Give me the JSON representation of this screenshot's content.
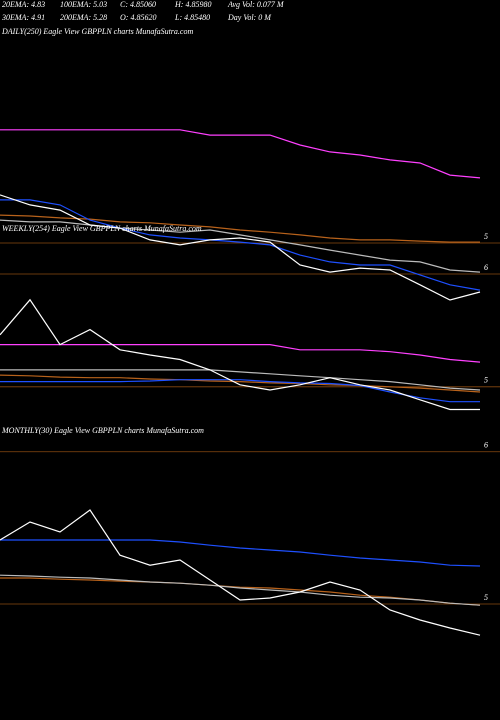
{
  "header": {
    "stats": [
      [
        "20EMA: 4.83",
        "100EMA: 5.03",
        "C: 4.85060",
        "H: 4.85980",
        "Avg Vol: 0.077 M"
      ],
      [
        "30EMA: 4.91",
        "200EMA: 5.28",
        "O: 4.85620",
        "L: 4.85480",
        "Day Vol: 0  M"
      ]
    ]
  },
  "chart_data": [
    {
      "type": "line",
      "title": "DAILY(250) Eagle  View  GBPPLN  charts MunafaSutra.com",
      "ylim": [
        7,
        1
      ],
      "yticks": [
        5,
        6
      ],
      "grid": true,
      "series": [
        {
          "color": "#ff40ff",
          "values": [
            1.35,
            1.35,
            1.35,
            1.35,
            1.35,
            1.35,
            1.35,
            1.52,
            1.52,
            1.52,
            1.84,
            2.06,
            2.16,
            2.32,
            2.42,
            2.81,
            2.9
          ]
        },
        {
          "color": "#b8621b",
          "values": [
            4.1,
            4.13,
            4.19,
            4.23,
            4.32,
            4.35,
            4.42,
            4.48,
            4.58,
            4.65,
            4.74,
            4.84,
            4.9,
            4.9,
            4.94,
            4.97,
            4.97
          ]
        },
        {
          "color": "#bbbbbb",
          "values": [
            4.26,
            4.32,
            4.32,
            4.42,
            4.52,
            4.58,
            4.65,
            4.58,
            4.74,
            4.9,
            5.06,
            5.23,
            5.39,
            5.55,
            5.61,
            5.87,
            5.94
          ]
        },
        {
          "color": "#1e50ff",
          "values": [
            3.61,
            3.61,
            3.77,
            4.26,
            4.52,
            4.74,
            4.84,
            4.9,
            4.97,
            5.06,
            5.39,
            5.61,
            5.71,
            5.71,
            6.03,
            6.35,
            6.52
          ]
        },
        {
          "color": "#ffffff",
          "values": [
            3.45,
            3.77,
            3.94,
            4.42,
            4.52,
            4.9,
            5.06,
            4.9,
            4.84,
            4.97,
            5.71,
            5.94,
            5.81,
            5.87,
            6.35,
            6.84,
            6.58
          ]
        }
      ]
    },
    {
      "type": "line",
      "title": "WEEKLY(254) Eagle  View  GBPPLN  charts MunafaSutra.com",
      "ylim": [
        6.05,
        2.74
      ],
      "yticks": [
        5,
        6
      ],
      "grid": true,
      "series": [
        {
          "color": "#ff40ff",
          "values": [
            4.35,
            4.35,
            4.35,
            4.35,
            4.35,
            4.35,
            4.35,
            4.35,
            4.35,
            4.35,
            4.43,
            4.43,
            4.43,
            4.46,
            4.51,
            4.58,
            4.62
          ]
        },
        {
          "color": "#b8621b",
          "values": [
            4.82,
            4.83,
            4.85,
            4.86,
            4.86,
            4.88,
            4.89,
            4.91,
            4.92,
            4.94,
            4.95,
            4.97,
            4.98,
            5.0,
            5.02,
            5.05,
            5.08
          ]
        },
        {
          "color": "#bbbbbb",
          "values": [
            4.74,
            4.74,
            4.74,
            4.74,
            4.74,
            4.74,
            4.74,
            4.74,
            4.77,
            4.8,
            4.83,
            4.86,
            4.89,
            4.92,
            4.97,
            5.02,
            5.05
          ]
        },
        {
          "color": "#1e50ff",
          "values": [
            4.92,
            4.92,
            4.92,
            4.92,
            4.92,
            4.91,
            4.89,
            4.89,
            4.89,
            4.92,
            4.94,
            4.95,
            4.98,
            5.08,
            5.17,
            5.23,
            5.23
          ]
        },
        {
          "color": "#ffffff",
          "values": [
            4.2,
            3.66,
            4.35,
            4.12,
            4.43,
            4.51,
            4.58,
            4.74,
            4.97,
            5.05,
            4.97,
            4.86,
            4.97,
            5.05,
            5.2,
            5.35,
            5.35
          ]
        }
      ]
    },
    {
      "type": "line",
      "title": "MONTHLY(30) Eagle  View  GBPPLN  charts MunafaSutra.com",
      "ylim": [
        5.9,
        2.15
      ],
      "yticks": [
        5
      ],
      "grid": true,
      "series": [
        {
          "color": "#b8621b",
          "values": [
            4.35,
            4.35,
            4.38,
            4.4,
            4.43,
            4.45,
            4.48,
            4.53,
            4.58,
            4.6,
            4.65,
            4.7,
            4.78,
            4.83,
            4.9,
            4.98,
            5.03
          ]
        },
        {
          "color": "#bbbbbb",
          "values": [
            4.28,
            4.3,
            4.33,
            4.35,
            4.4,
            4.45,
            4.48,
            4.53,
            4.6,
            4.65,
            4.7,
            4.78,
            4.83,
            4.85,
            4.9,
            4.98,
            5.03
          ]
        },
        {
          "color": "#1e50ff",
          "values": [
            3.4,
            3.4,
            3.4,
            3.4,
            3.4,
            3.4,
            3.45,
            3.53,
            3.6,
            3.65,
            3.7,
            3.78,
            3.85,
            3.9,
            3.95,
            4.03,
            4.05
          ]
        },
        {
          "color": "#ffffff",
          "values": [
            3.4,
            2.95,
            3.2,
            2.65,
            3.78,
            4.03,
            3.9,
            4.4,
            4.9,
            4.85,
            4.7,
            4.45,
            4.65,
            5.15,
            5.4,
            5.6,
            5.78
          ]
        }
      ]
    }
  ]
}
